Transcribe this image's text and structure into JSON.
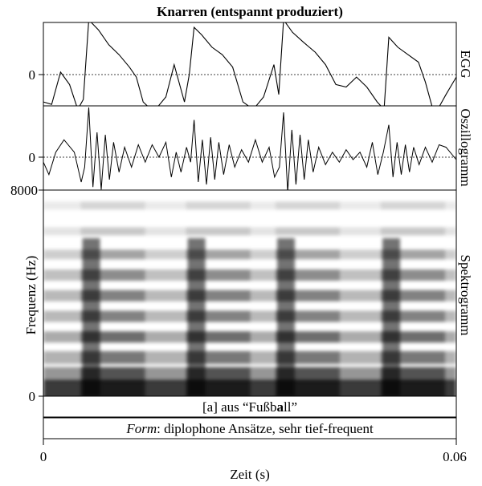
{
  "title": "Knarren (entspannt produziert)",
  "panels": {
    "egg": {
      "label": "EGG",
      "zero_tick": "0"
    },
    "osc": {
      "label": "Oszillogramm",
      "zero_tick": "0"
    },
    "spec": {
      "label": "Spektrogramm",
      "ylabel": "Frequenz (Hz)",
      "ytick_top": "8000",
      "ytick_bottom": "0"
    }
  },
  "tiers": {
    "segment": {
      "prefix": "[a] aus “Fußb",
      "bold": "a",
      "suffix": "ll”"
    },
    "form": {
      "label": "Form",
      "text": ": diplophone Ansätze, sehr tief-frequent"
    }
  },
  "xaxis": {
    "label": "Zeit (s)",
    "tick_min": "0",
    "tick_max": "0.06"
  },
  "chart_data": {
    "type": "line",
    "title": "Knarren (entspannt produziert)",
    "xlabel": "Zeit (s)",
    "xlim": [
      0,
      0.06
    ],
    "spectrogram_ylim": [
      0,
      8000
    ],
    "spectrogram_ylabel": "Frequenz (Hz)",
    "glottal_pulse_times_s": [
      0.0066,
      0.0219,
      0.0349,
      0.0502
    ],
    "series": [
      {
        "name": "EGG",
        "x": [
          0,
          0.0012,
          0.0025,
          0.0038,
          0.005,
          0.0058,
          0.0066,
          0.008,
          0.0095,
          0.011,
          0.0125,
          0.0135,
          0.0145,
          0.016,
          0.0178,
          0.019,
          0.0205,
          0.0212,
          0.0219,
          0.023,
          0.0245,
          0.026,
          0.0275,
          0.029,
          0.0305,
          0.032,
          0.0335,
          0.0342,
          0.0349,
          0.0362,
          0.0378,
          0.0395,
          0.041,
          0.0425,
          0.044,
          0.0455,
          0.047,
          0.0485,
          0.0495,
          0.0502,
          0.0515,
          0.053,
          0.0545,
          0.0555,
          0.0565,
          0.0575,
          0.0585,
          0.06
        ],
        "y": [
          -0.55,
          -0.6,
          0.05,
          -0.2,
          -0.7,
          -0.5,
          1.1,
          0.9,
          0.6,
          0.4,
          0.15,
          -0.05,
          -0.55,
          -0.75,
          -0.45,
          0.2,
          -0.55,
          0.0,
          0.95,
          0.8,
          0.55,
          0.4,
          0.15,
          -0.55,
          -0.7,
          -0.45,
          0.2,
          -0.4,
          1.1,
          0.85,
          0.65,
          0.45,
          0.2,
          -0.2,
          -0.25,
          -0.05,
          -0.25,
          -0.55,
          -0.7,
          0.75,
          0.55,
          0.4,
          0.25,
          -0.15,
          -0.65,
          -0.65,
          -0.4,
          -0.05
        ]
      },
      {
        "name": "Oszillogramm",
        "x": [
          0,
          0.0008,
          0.0018,
          0.003,
          0.0045,
          0.0055,
          0.006,
          0.0066,
          0.0072,
          0.0078,
          0.0084,
          0.009,
          0.0096,
          0.0102,
          0.011,
          0.0118,
          0.0128,
          0.0138,
          0.0148,
          0.0158,
          0.0168,
          0.0178,
          0.0186,
          0.0193,
          0.02,
          0.0208,
          0.0214,
          0.0219,
          0.0225,
          0.0231,
          0.0237,
          0.0243,
          0.0249,
          0.0255,
          0.0262,
          0.027,
          0.0278,
          0.0288,
          0.0298,
          0.0308,
          0.0318,
          0.0328,
          0.0336,
          0.0343,
          0.0349,
          0.0355,
          0.0361,
          0.0367,
          0.0373,
          0.0379,
          0.0385,
          0.0392,
          0.04,
          0.041,
          0.042,
          0.043,
          0.044,
          0.045,
          0.046,
          0.047,
          0.0478,
          0.0486,
          0.0494,
          0.0502,
          0.0508,
          0.0514,
          0.052,
          0.0526,
          0.0532,
          0.0538,
          0.0546,
          0.0555,
          0.0565,
          0.0575,
          0.0585,
          0.06
        ],
        "y": [
          -0.1,
          -0.35,
          0.1,
          0.35,
          0.1,
          -0.5,
          -0.2,
          1.0,
          -0.6,
          0.5,
          -0.65,
          0.45,
          -0.45,
          0.3,
          -0.3,
          0.2,
          -0.2,
          0.25,
          -0.1,
          0.25,
          0.0,
          0.3,
          -0.4,
          0.1,
          -0.3,
          0.2,
          -0.1,
          0.75,
          -0.5,
          0.35,
          -0.55,
          0.4,
          -0.45,
          0.3,
          -0.35,
          0.25,
          -0.2,
          0.15,
          -0.1,
          0.35,
          -0.1,
          0.2,
          -0.4,
          -0.2,
          0.9,
          -0.7,
          0.55,
          -0.55,
          0.45,
          -0.45,
          0.35,
          -0.3,
          0.2,
          -0.15,
          0.1,
          -0.1,
          0.15,
          -0.05,
          0.1,
          -0.2,
          0.3,
          -0.35,
          0.1,
          0.65,
          -0.4,
          0.3,
          -0.35,
          0.25,
          -0.3,
          0.2,
          -0.15,
          0.2,
          -0.1,
          0.25,
          0.2,
          -0.05
        ]
      }
    ]
  }
}
